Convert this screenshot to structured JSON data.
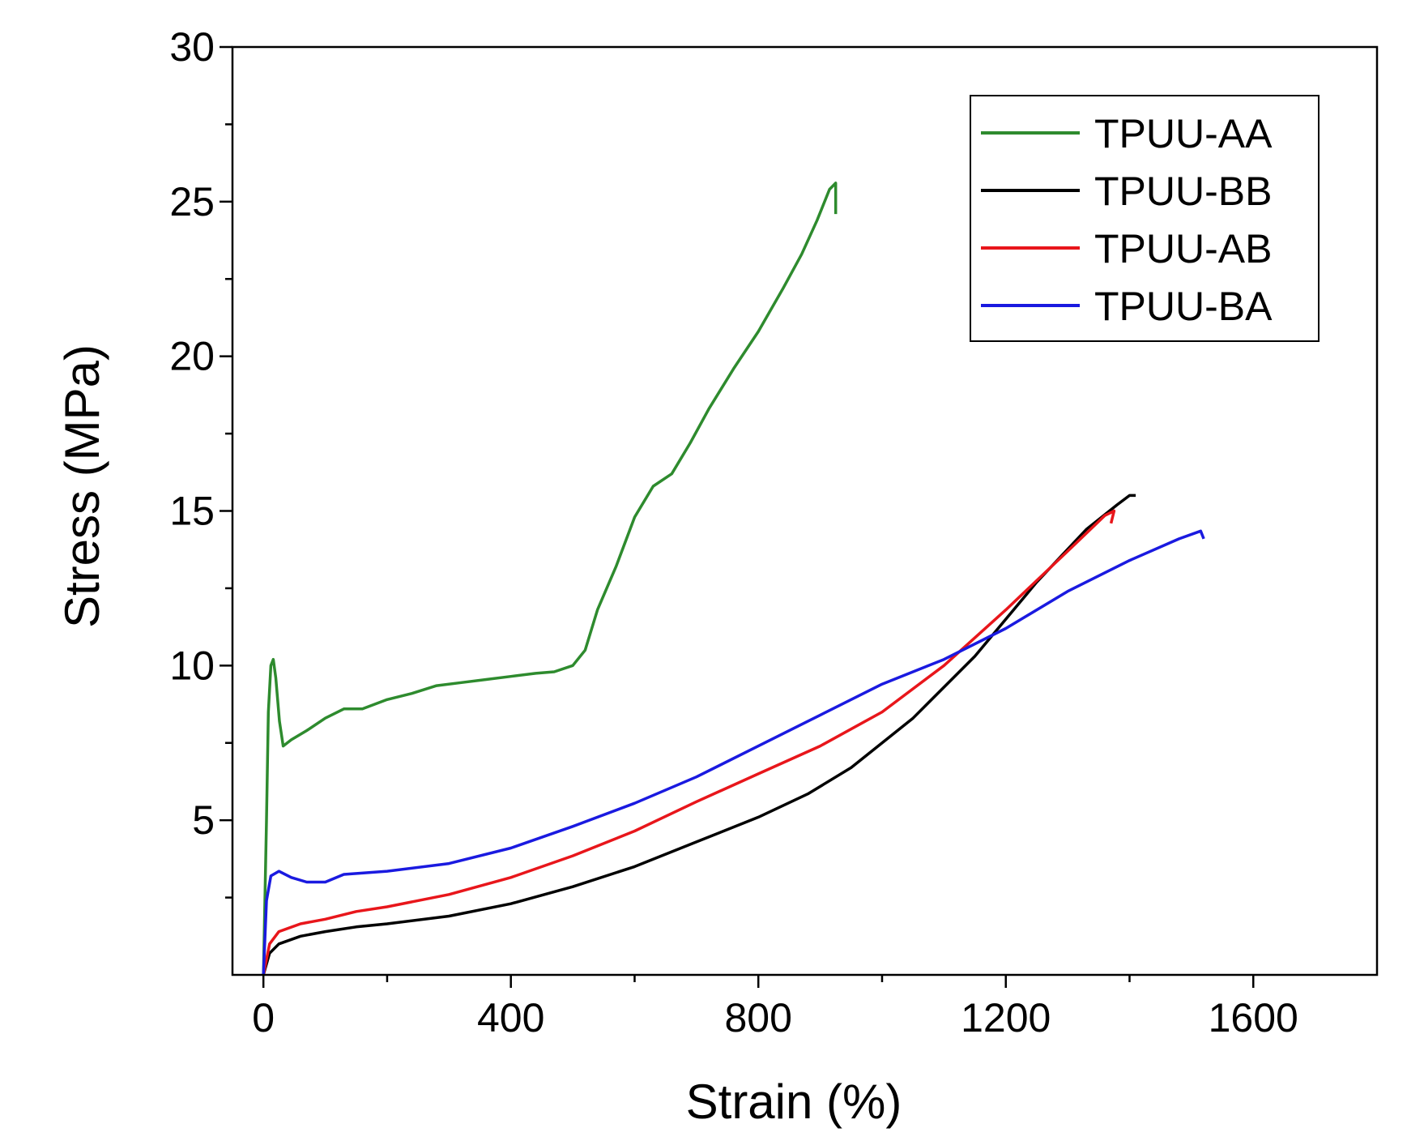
{
  "chart_data": {
    "type": "line",
    "title": "",
    "xlabel": "Strain (%)",
    "ylabel": "Stress (MPa)",
    "xlim": [
      -50,
      1800
    ],
    "ylim": [
      0,
      30
    ],
    "x_ticks": [
      0,
      400,
      800,
      1200,
      1600
    ],
    "y_ticks": [
      5,
      10,
      15,
      20,
      25,
      30
    ],
    "x_minor_ticks": [
      200,
      600,
      1000,
      1400
    ],
    "y_minor_ticks": [
      2.5,
      7.5,
      12.5,
      17.5,
      22.5,
      27.5
    ],
    "grid": false,
    "legend_position": "top-right",
    "series": [
      {
        "name": "TPUU-AA",
        "color": "#2e8b2e",
        "points": [
          [
            0,
            0
          ],
          [
            5,
            5
          ],
          [
            8,
            8.5
          ],
          [
            12,
            10
          ],
          [
            16,
            10.2
          ],
          [
            20,
            9.6
          ],
          [
            26,
            8.2
          ],
          [
            32,
            7.4
          ],
          [
            45,
            7.6
          ],
          [
            70,
            7.9
          ],
          [
            100,
            8.3
          ],
          [
            130,
            8.6
          ],
          [
            160,
            8.6
          ],
          [
            200,
            8.9
          ],
          [
            240,
            9.1
          ],
          [
            280,
            9.35
          ],
          [
            320,
            9.45
          ],
          [
            360,
            9.55
          ],
          [
            400,
            9.65
          ],
          [
            440,
            9.75
          ],
          [
            470,
            9.8
          ],
          [
            500,
            10.0
          ],
          [
            520,
            10.5
          ],
          [
            540,
            11.8
          ],
          [
            570,
            13.2
          ],
          [
            600,
            14.8
          ],
          [
            630,
            15.8
          ],
          [
            660,
            16.2
          ],
          [
            690,
            17.2
          ],
          [
            720,
            18.3
          ],
          [
            760,
            19.6
          ],
          [
            800,
            20.8
          ],
          [
            840,
            22.2
          ],
          [
            870,
            23.3
          ],
          [
            895,
            24.4
          ],
          [
            915,
            25.4
          ],
          [
            925,
            25.6
          ],
          [
            925,
            24.6
          ]
        ]
      },
      {
        "name": "TPUU-BB",
        "color": "#000000",
        "points": [
          [
            0,
            0
          ],
          [
            10,
            0.7
          ],
          [
            25,
            1.0
          ],
          [
            60,
            1.25
          ],
          [
            100,
            1.4
          ],
          [
            150,
            1.55
          ],
          [
            200,
            1.65
          ],
          [
            300,
            1.9
          ],
          [
            400,
            2.3
          ],
          [
            500,
            2.85
          ],
          [
            600,
            3.5
          ],
          [
            700,
            4.3
          ],
          [
            800,
            5.1
          ],
          [
            880,
            5.85
          ],
          [
            950,
            6.7
          ],
          [
            1050,
            8.3
          ],
          [
            1150,
            10.3
          ],
          [
            1250,
            12.7
          ],
          [
            1330,
            14.4
          ],
          [
            1380,
            15.2
          ],
          [
            1400,
            15.5
          ],
          [
            1410,
            15.5
          ]
        ]
      },
      {
        "name": "TPUU-AB",
        "color": "#e8161b",
        "points": [
          [
            0,
            0
          ],
          [
            10,
            1.0
          ],
          [
            25,
            1.4
          ],
          [
            60,
            1.65
          ],
          [
            100,
            1.8
          ],
          [
            150,
            2.05
          ],
          [
            200,
            2.2
          ],
          [
            300,
            2.6
          ],
          [
            400,
            3.15
          ],
          [
            500,
            3.85
          ],
          [
            600,
            4.65
          ],
          [
            700,
            5.6
          ],
          [
            800,
            6.5
          ],
          [
            900,
            7.4
          ],
          [
            1000,
            8.5
          ],
          [
            1100,
            10.0
          ],
          [
            1200,
            11.8
          ],
          [
            1300,
            13.7
          ],
          [
            1360,
            14.85
          ],
          [
            1375,
            15.0
          ],
          [
            1370,
            14.6
          ]
        ]
      },
      {
        "name": "TPUU-BA",
        "color": "#1a1ae0",
        "points": [
          [
            0,
            0
          ],
          [
            5,
            2.4
          ],
          [
            12,
            3.2
          ],
          [
            25,
            3.35
          ],
          [
            45,
            3.15
          ],
          [
            70,
            3.0
          ],
          [
            100,
            3.0
          ],
          [
            130,
            3.25
          ],
          [
            200,
            3.35
          ],
          [
            300,
            3.6
          ],
          [
            400,
            4.1
          ],
          [
            500,
            4.8
          ],
          [
            600,
            5.55
          ],
          [
            700,
            6.4
          ],
          [
            800,
            7.4
          ],
          [
            900,
            8.4
          ],
          [
            1000,
            9.4
          ],
          [
            1100,
            10.2
          ],
          [
            1200,
            11.2
          ],
          [
            1300,
            12.4
          ],
          [
            1400,
            13.4
          ],
          [
            1480,
            14.1
          ],
          [
            1515,
            14.35
          ],
          [
            1520,
            14.1
          ]
        ]
      }
    ]
  }
}
